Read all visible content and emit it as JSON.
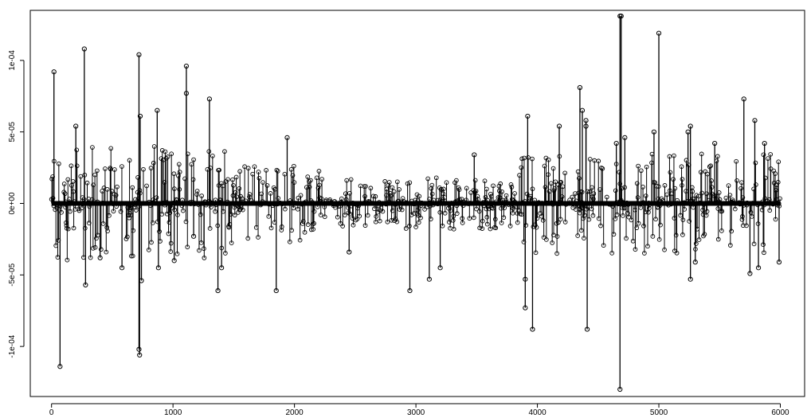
{
  "chart_data": {
    "type": "scatter",
    "style": "R base plot, type='h' vertical lines with open circle markers",
    "title": "",
    "xlabel": "",
    "ylabel": "",
    "xlim": [
      -175,
      6200
    ],
    "ylim": [
      -0.000135,
      0.000135
    ],
    "x_ticks": [
      0,
      1000,
      2000,
      3000,
      4000,
      5000,
      6000
    ],
    "x_tick_labels": [
      "0",
      "1000",
      "2000",
      "3000",
      "4000",
      "5000",
      "6000"
    ],
    "y_ticks": [
      -0.0001,
      -5e-05,
      0,
      5e-05,
      0.0001
    ],
    "y_tick_labels": [
      "-1e-04",
      "-5e-05",
      "0e+00",
      "5e-05",
      "1e-04"
    ],
    "grid": false,
    "legend": "none",
    "colors": {
      "line": "#000000",
      "marker": "#000000",
      "background": "#ffffff"
    },
    "n_points": 6000,
    "notable_points": [
      {
        "x": 20,
        "y": 9.2e-05
      },
      {
        "x": 70,
        "y": -0.000114
      },
      {
        "x": 200,
        "y": 5.4e-05
      },
      {
        "x": 270,
        "y": 0.000108
      },
      {
        "x": 280,
        "y": -5.7e-05
      },
      {
        "x": 400,
        "y": -3.8e-05
      },
      {
        "x": 580,
        "y": -4.5e-05
      },
      {
        "x": 720,
        "y": 0.000104
      },
      {
        "x": 720,
        "y": -0.000102
      },
      {
        "x": 725,
        "y": -0.000106
      },
      {
        "x": 730,
        "y": 6.1e-05
      },
      {
        "x": 740,
        "y": -5.4e-05
      },
      {
        "x": 870,
        "y": 6.5e-05
      },
      {
        "x": 880,
        "y": -4.5e-05
      },
      {
        "x": 1010,
        "y": -4e-05
      },
      {
        "x": 1110,
        "y": 9.6e-05
      },
      {
        "x": 1110,
        "y": 7.7e-05
      },
      {
        "x": 1170,
        "y": -2.3e-05
      },
      {
        "x": 1300,
        "y": 7.3e-05
      },
      {
        "x": 1370,
        "y": -6.1e-05
      },
      {
        "x": 1400,
        "y": -4.5e-05
      },
      {
        "x": 1850,
        "y": -6.1e-05
      },
      {
        "x": 1940,
        "y": 4.6e-05
      },
      {
        "x": 2450,
        "y": -3.4e-05
      },
      {
        "x": 2950,
        "y": -6.1e-05
      },
      {
        "x": 3110,
        "y": -5.3e-05
      },
      {
        "x": 3200,
        "y": -4.5e-05
      },
      {
        "x": 3480,
        "y": 3.4e-05
      },
      {
        "x": 3900,
        "y": -7.3e-05
      },
      {
        "x": 3900,
        "y": -5.3e-05
      },
      {
        "x": 3920,
        "y": 6.1e-05
      },
      {
        "x": 3960,
        "y": -8.8e-05
      },
      {
        "x": 4180,
        "y": 5.4e-05
      },
      {
        "x": 4350,
        "y": 8.1e-05
      },
      {
        "x": 4370,
        "y": 6.5e-05
      },
      {
        "x": 4400,
        "y": 5.8e-05
      },
      {
        "x": 4400,
        "y": 5.4e-05
      },
      {
        "x": 4410,
        "y": -8.8e-05
      },
      {
        "x": 4650,
        "y": 4.2e-05
      },
      {
        "x": 4680,
        "y": 0.000131
      },
      {
        "x": 4690,
        "y": 0.000131
      },
      {
        "x": 4680,
        "y": -0.00013
      },
      {
        "x": 4720,
        "y": 4.6e-05
      },
      {
        "x": 5000,
        "y": 0.000119
      },
      {
        "x": 4960,
        "y": 5e-05
      },
      {
        "x": 5240,
        "y": 5e-05
      },
      {
        "x": 5260,
        "y": 5.4e-05
      },
      {
        "x": 5260,
        "y": -5.3e-05
      },
      {
        "x": 5300,
        "y": -4.1e-05
      },
      {
        "x": 5460,
        "y": 4.2e-05
      },
      {
        "x": 5700,
        "y": 7.3e-05
      },
      {
        "x": 5750,
        "y": -4.9e-05
      },
      {
        "x": 5790,
        "y": 5.8e-05
      },
      {
        "x": 5820,
        "y": -4.5e-05
      },
      {
        "x": 5870,
        "y": 4.2e-05
      },
      {
        "x": 5990,
        "y": -4.1e-05
      }
    ],
    "cluster_amplitude": [
      {
        "range": [
          0,
          1500
        ],
        "amp": 4e-05
      },
      {
        "range": [
          1500,
          2300
        ],
        "amp": 2.8e-05
      },
      {
        "range": [
          2300,
          3850
        ],
        "amp": 1.8e-05
      },
      {
        "range": [
          3850,
          4600
        ],
        "amp": 3.5e-05
      },
      {
        "range": [
          4600,
          6000
        ],
        "amp": 3.5e-05
      }
    ]
  }
}
